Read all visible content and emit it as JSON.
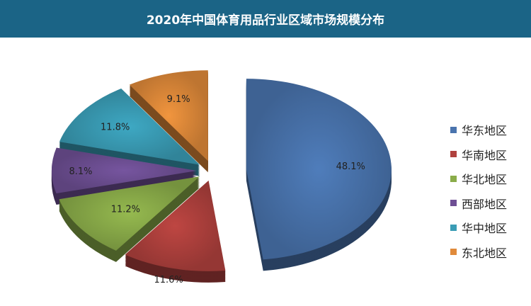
{
  "chart_data": {
    "type": "pie",
    "title": "2020年中国体育用品行业区域市场规模分布",
    "style": "3d-exploded",
    "legend_position": "right",
    "slices": [
      {
        "label": "华东地区",
        "value": 48.1,
        "display": "48.1%",
        "color": "#4a74ae"
      },
      {
        "label": "华南地区",
        "value": 11.6,
        "display": "11.6%",
        "color": "#b0413e"
      },
      {
        "label": "华北地区",
        "value": 11.2,
        "display": "11.2%",
        "color": "#8aac4a"
      },
      {
        "label": "西部地区",
        "value": 8.1,
        "display": "8.1%",
        "color": "#6e4f94"
      },
      {
        "label": "华中地区",
        "value": 11.8,
        "display": "11.8%",
        "color": "#3a9cb5"
      },
      {
        "label": "东北地区",
        "value": 9.1,
        "display": "9.1%",
        "color": "#e08a3a"
      }
    ]
  }
}
